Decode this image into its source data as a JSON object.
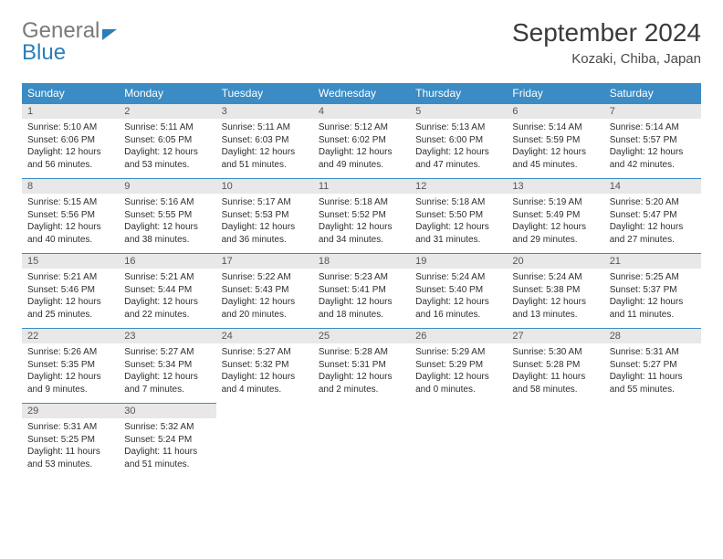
{
  "brand": {
    "part1": "General",
    "part2": "Blue"
  },
  "title": "September 2024",
  "location": "Kozaki, Chiba, Japan",
  "colors": {
    "header_bg": "#3b8bc4",
    "header_text": "#ffffff",
    "daynum_bg": "#e8e8e8",
    "row_divider": "#3b8bc4",
    "body_text": "#2e2e2e",
    "title_text": "#3a3a3a",
    "brand_gray": "#7a7a7a",
    "brand_blue": "#2a7fba",
    "background": "#ffffff"
  },
  "typography": {
    "month_title_fontsize": 28,
    "location_fontsize": 15,
    "weekday_fontsize": 12,
    "daynum_fontsize": 11,
    "cell_fontsize": 10
  },
  "weekdays": [
    "Sunday",
    "Monday",
    "Tuesday",
    "Wednesday",
    "Thursday",
    "Friday",
    "Saturday"
  ],
  "weeks": [
    [
      {
        "n": "1",
        "sr": "Sunrise: 5:10 AM",
        "ss": "Sunset: 6:06 PM",
        "d1": "Daylight: 12 hours",
        "d2": "and 56 minutes."
      },
      {
        "n": "2",
        "sr": "Sunrise: 5:11 AM",
        "ss": "Sunset: 6:05 PM",
        "d1": "Daylight: 12 hours",
        "d2": "and 53 minutes."
      },
      {
        "n": "3",
        "sr": "Sunrise: 5:11 AM",
        "ss": "Sunset: 6:03 PM",
        "d1": "Daylight: 12 hours",
        "d2": "and 51 minutes."
      },
      {
        "n": "4",
        "sr": "Sunrise: 5:12 AM",
        "ss": "Sunset: 6:02 PM",
        "d1": "Daylight: 12 hours",
        "d2": "and 49 minutes."
      },
      {
        "n": "5",
        "sr": "Sunrise: 5:13 AM",
        "ss": "Sunset: 6:00 PM",
        "d1": "Daylight: 12 hours",
        "d2": "and 47 minutes."
      },
      {
        "n": "6",
        "sr": "Sunrise: 5:14 AM",
        "ss": "Sunset: 5:59 PM",
        "d1": "Daylight: 12 hours",
        "d2": "and 45 minutes."
      },
      {
        "n": "7",
        "sr": "Sunrise: 5:14 AM",
        "ss": "Sunset: 5:57 PM",
        "d1": "Daylight: 12 hours",
        "d2": "and 42 minutes."
      }
    ],
    [
      {
        "n": "8",
        "sr": "Sunrise: 5:15 AM",
        "ss": "Sunset: 5:56 PM",
        "d1": "Daylight: 12 hours",
        "d2": "and 40 minutes."
      },
      {
        "n": "9",
        "sr": "Sunrise: 5:16 AM",
        "ss": "Sunset: 5:55 PM",
        "d1": "Daylight: 12 hours",
        "d2": "and 38 minutes."
      },
      {
        "n": "10",
        "sr": "Sunrise: 5:17 AM",
        "ss": "Sunset: 5:53 PM",
        "d1": "Daylight: 12 hours",
        "d2": "and 36 minutes."
      },
      {
        "n": "11",
        "sr": "Sunrise: 5:18 AM",
        "ss": "Sunset: 5:52 PM",
        "d1": "Daylight: 12 hours",
        "d2": "and 34 minutes."
      },
      {
        "n": "12",
        "sr": "Sunrise: 5:18 AM",
        "ss": "Sunset: 5:50 PM",
        "d1": "Daylight: 12 hours",
        "d2": "and 31 minutes."
      },
      {
        "n": "13",
        "sr": "Sunrise: 5:19 AM",
        "ss": "Sunset: 5:49 PM",
        "d1": "Daylight: 12 hours",
        "d2": "and 29 minutes."
      },
      {
        "n": "14",
        "sr": "Sunrise: 5:20 AM",
        "ss": "Sunset: 5:47 PM",
        "d1": "Daylight: 12 hours",
        "d2": "and 27 minutes."
      }
    ],
    [
      {
        "n": "15",
        "sr": "Sunrise: 5:21 AM",
        "ss": "Sunset: 5:46 PM",
        "d1": "Daylight: 12 hours",
        "d2": "and 25 minutes."
      },
      {
        "n": "16",
        "sr": "Sunrise: 5:21 AM",
        "ss": "Sunset: 5:44 PM",
        "d1": "Daylight: 12 hours",
        "d2": "and 22 minutes."
      },
      {
        "n": "17",
        "sr": "Sunrise: 5:22 AM",
        "ss": "Sunset: 5:43 PM",
        "d1": "Daylight: 12 hours",
        "d2": "and 20 minutes."
      },
      {
        "n": "18",
        "sr": "Sunrise: 5:23 AM",
        "ss": "Sunset: 5:41 PM",
        "d1": "Daylight: 12 hours",
        "d2": "and 18 minutes."
      },
      {
        "n": "19",
        "sr": "Sunrise: 5:24 AM",
        "ss": "Sunset: 5:40 PM",
        "d1": "Daylight: 12 hours",
        "d2": "and 16 minutes."
      },
      {
        "n": "20",
        "sr": "Sunrise: 5:24 AM",
        "ss": "Sunset: 5:38 PM",
        "d1": "Daylight: 12 hours",
        "d2": "and 13 minutes."
      },
      {
        "n": "21",
        "sr": "Sunrise: 5:25 AM",
        "ss": "Sunset: 5:37 PM",
        "d1": "Daylight: 12 hours",
        "d2": "and 11 minutes."
      }
    ],
    [
      {
        "n": "22",
        "sr": "Sunrise: 5:26 AM",
        "ss": "Sunset: 5:35 PM",
        "d1": "Daylight: 12 hours",
        "d2": "and 9 minutes."
      },
      {
        "n": "23",
        "sr": "Sunrise: 5:27 AM",
        "ss": "Sunset: 5:34 PM",
        "d1": "Daylight: 12 hours",
        "d2": "and 7 minutes."
      },
      {
        "n": "24",
        "sr": "Sunrise: 5:27 AM",
        "ss": "Sunset: 5:32 PM",
        "d1": "Daylight: 12 hours",
        "d2": "and 4 minutes."
      },
      {
        "n": "25",
        "sr": "Sunrise: 5:28 AM",
        "ss": "Sunset: 5:31 PM",
        "d1": "Daylight: 12 hours",
        "d2": "and 2 minutes."
      },
      {
        "n": "26",
        "sr": "Sunrise: 5:29 AM",
        "ss": "Sunset: 5:29 PM",
        "d1": "Daylight: 12 hours",
        "d2": "and 0 minutes."
      },
      {
        "n": "27",
        "sr": "Sunrise: 5:30 AM",
        "ss": "Sunset: 5:28 PM",
        "d1": "Daylight: 11 hours",
        "d2": "and 58 minutes."
      },
      {
        "n": "28",
        "sr": "Sunrise: 5:31 AM",
        "ss": "Sunset: 5:27 PM",
        "d1": "Daylight: 11 hours",
        "d2": "and 55 minutes."
      }
    ],
    [
      {
        "n": "29",
        "sr": "Sunrise: 5:31 AM",
        "ss": "Sunset: 5:25 PM",
        "d1": "Daylight: 11 hours",
        "d2": "and 53 minutes."
      },
      {
        "n": "30",
        "sr": "Sunrise: 5:32 AM",
        "ss": "Sunset: 5:24 PM",
        "d1": "Daylight: 11 hours",
        "d2": "and 51 minutes."
      },
      null,
      null,
      null,
      null,
      null
    ]
  ]
}
